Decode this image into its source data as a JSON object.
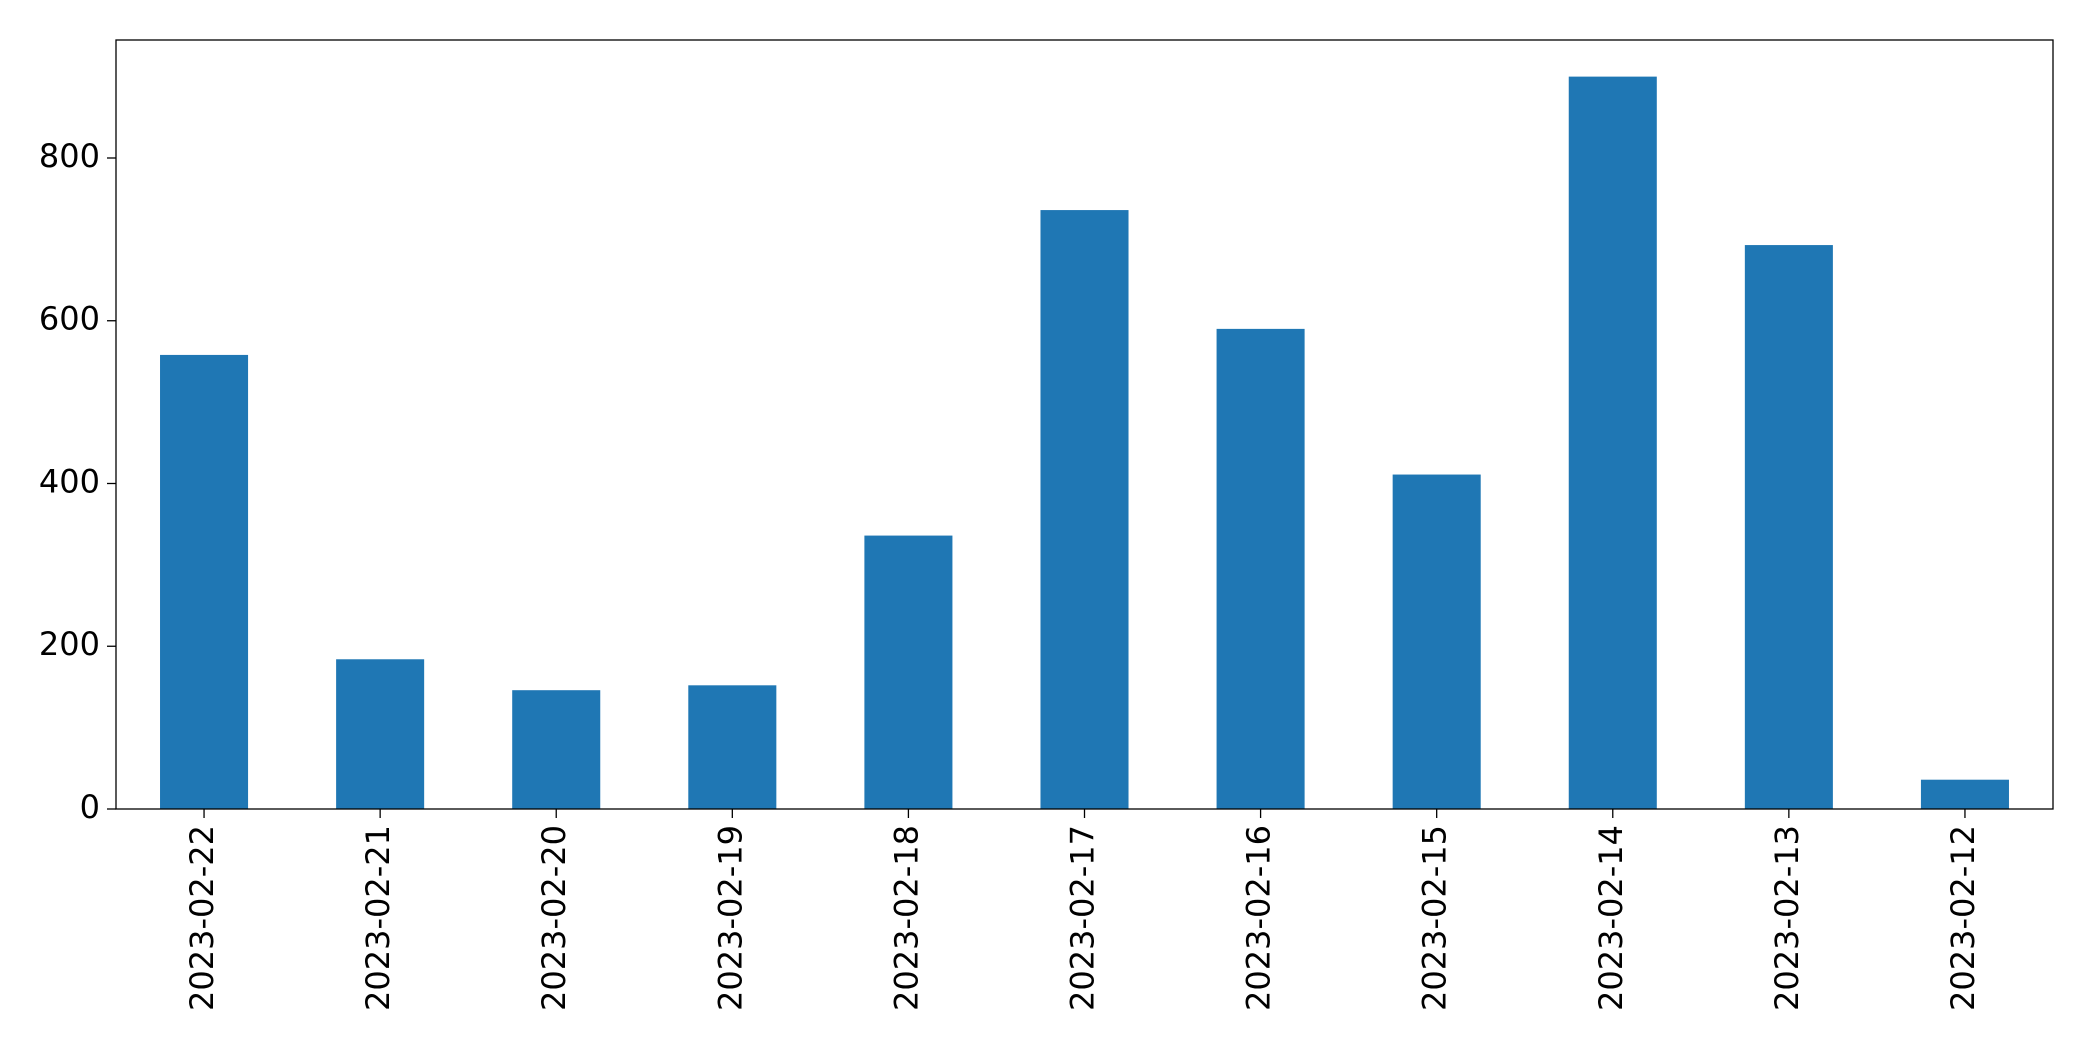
{
  "chart_data": {
    "type": "bar",
    "categories": [
      "2023-02-22",
      "2023-02-21",
      "2023-02-20",
      "2023-02-19",
      "2023-02-18",
      "2023-02-17",
      "2023-02-16",
      "2023-02-15",
      "2023-02-14",
      "2023-02-13",
      "2023-02-12"
    ],
    "values": [
      558,
      184,
      146,
      152,
      336,
      736,
      590,
      411,
      900,
      693,
      36
    ],
    "color": "#1f77b4",
    "ylim": [
      0,
      945
    ],
    "yticks": [
      0,
      200,
      400,
      600,
      800
    ],
    "grid": false
  }
}
